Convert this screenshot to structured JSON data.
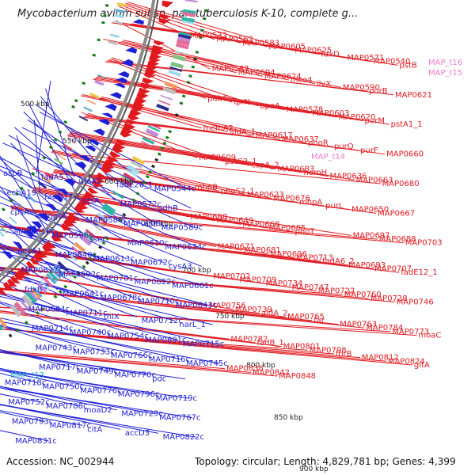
{
  "title": "Mycobacterium avium subsp. paratuberculosis K-10, complete g...",
  "accession": "Accession: NC_002944",
  "topology": "Topology: circular; Length: 4,829,781 bp; Genes: 4,399",
  "colors": {
    "forward": "#e0191f",
    "reverse": "#1f1fd6",
    "pink": "#f07bd0",
    "cyan": "#25b8d8",
    "backbone": "#8a8a8a",
    "tick": "#1a7a1a"
  },
  "kbp_labels": [
    "500 kbp",
    "550 kbp",
    "600 kbp",
    "650 kbp",
    "700 kbp",
    "750 kbp",
    "800 kbp",
    "850 kbp",
    "900 kbp"
  ],
  "red_labels": [
    "MAP0532",
    "MAP0562",
    "MAP0583",
    "MAP0605",
    "MAP0625",
    "fdxD",
    "MAP0571",
    "MAP0540",
    "pstB",
    "MAP0587",
    "MAP0604",
    "MAP0624",
    "mce4",
    "ilvX",
    "MAP0590",
    "purB",
    "MAP0621",
    "pabC",
    "lprN",
    "bpoA",
    "MAP0578",
    "MAP0603",
    "MAP0620",
    "purM",
    "pstA1_1",
    "mcmA2",
    "aldA_1",
    "MAP0617",
    "MAP0637",
    "phoR",
    "purQ",
    "purF",
    "MAP0660",
    "MAP0609",
    "pstC2_1",
    "cspA_2",
    "MAP0683",
    "hemH",
    "MAP0636",
    "MAP0663",
    "MAP0680",
    "mhpB",
    "phoS2_1",
    "MAP0623",
    "MAP0676",
    "mhpA",
    "purL",
    "MAP0650",
    "MAP0667",
    "MAP0698",
    "MAP0649",
    "MAP0668",
    "MAP0685",
    "phoT",
    "MAP0697",
    "MAP0688",
    "MAP0703",
    "MAP0671",
    "MAP0681",
    "MAP0696",
    "MAP0713",
    "fadA6_2",
    "MAP0693",
    "MAP0707",
    "fadE12_1",
    "MAP0702",
    "MAP0709",
    "MAP0734",
    "MAP0747",
    "MAP0722",
    "MAP0760",
    "MAP0728",
    "MAP0746",
    "MAP0756",
    "MAP0739",
    "aldA_2",
    "MAP0765",
    "far",
    "MAP0763",
    "MAP0784",
    "MAP0773",
    "moaC",
    "MAP0782",
    "fadB_1",
    "MAP0801",
    "MAP0798",
    "fprB",
    "MAP0812",
    "MAP0824",
    "gltA",
    "MAP0836",
    "MAP0842",
    "MAP0848"
  ],
  "pink_labels": [
    "MAP_t16",
    "MAP_t15",
    "MAP_t14"
  ],
  "blue_labels": [
    "aspB",
    "fadA5",
    "ufaA2",
    "fadE26_1",
    "MAP0544c",
    "echA19",
    "fadD17",
    "otsA",
    "MAP0572c",
    "adhB",
    "cpsA",
    "ggtA",
    "MAP0580c",
    "MAP0608c",
    "MAP0589c",
    "MAP0618c",
    "MAP0596c",
    "sseC",
    "MAP0610c",
    "MAP0634c",
    "desA1",
    "MAP0640c",
    "MAP0613c",
    "MAP0672c",
    "cysA3",
    "MAP0677c",
    "MAP0692c",
    "MAP0701c",
    "MAP0622c",
    "MAP0661c",
    "fdxB",
    "MAP0641c",
    "MAP0678c",
    "MAP0710c",
    "MAP0643c",
    "MAP0684c",
    "MAP0711c",
    "thiX",
    "MAP0712c",
    "narL_1",
    "MAP0714c",
    "MAP0740c",
    "MAP0754c",
    "MAP0691c",
    "MAP0715c",
    "MAP0743c",
    "MAP0733c",
    "MAP0766c",
    "MAP0716c",
    "MAP0745c",
    "MAP0717c",
    "MAP0749c",
    "MAP0770c",
    "pdc",
    "MAP0718c",
    "MAP0750c",
    "MAP0776c",
    "MAP0796c",
    "MAP0719c",
    "MAP0752c",
    "MAP0788c",
    "moaD2",
    "MAP0729c",
    "MAP0767c",
    "MAP0793c",
    "MAP0817c",
    "citA",
    "accD3",
    "MAP0822c",
    "MAP0831c"
  ],
  "cyan_labels": [
    "MAP_t13"
  ]
}
